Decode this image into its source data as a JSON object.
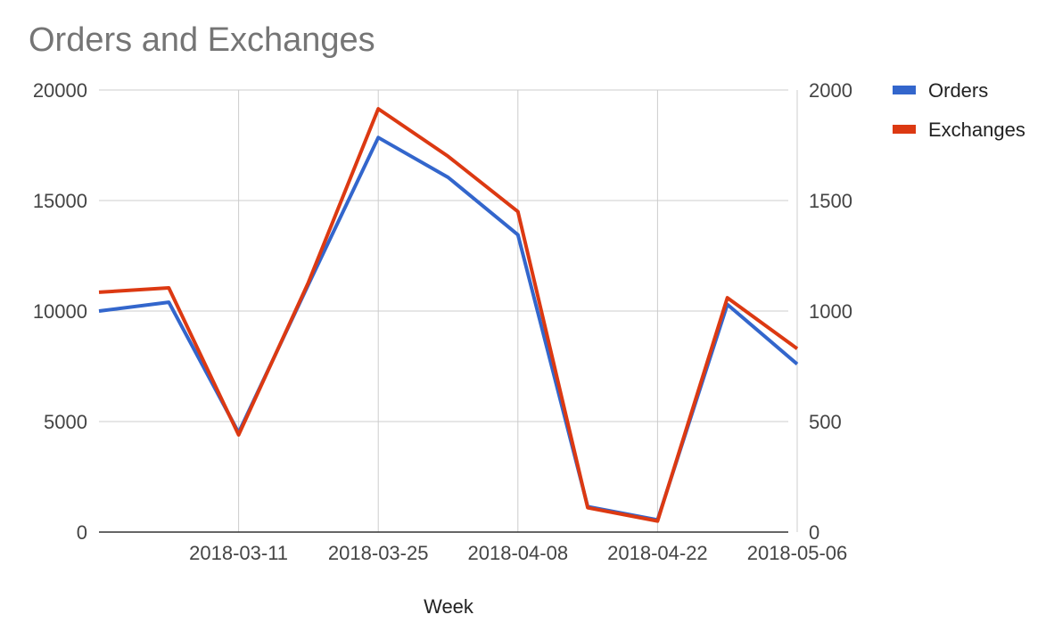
{
  "chart_data": {
    "type": "line",
    "title": "Orders and Exchanges",
    "xlabel": "Week",
    "ylabel": "",
    "y2label": "",
    "x": [
      "2018-02-25",
      "2018-03-04",
      "2018-03-11",
      "2018-03-18",
      "2018-03-25",
      "2018-04-01",
      "2018-04-08",
      "2018-04-15",
      "2018-04-22",
      "2018-04-29",
      "2018-05-06"
    ],
    "x_tick_labels": [
      "2018-03-11",
      "2018-03-25",
      "2018-04-08",
      "2018-04-22",
      "2018-05-06"
    ],
    "ylim": [
      0,
      20000
    ],
    "y_ticks": [
      0,
      5000,
      10000,
      15000,
      20000
    ],
    "y2lim": [
      0,
      2000
    ],
    "y2_ticks": [
      0,
      500,
      1000,
      1500,
      2000
    ],
    "grid": true,
    "legend_position": "top-right",
    "series": [
      {
        "name": "Orders",
        "axis": "left",
        "color": "#3366cc",
        "values": [
          10000,
          10400,
          4500,
          11200,
          17850,
          16050,
          13450,
          1150,
          550,
          10300,
          7600
        ]
      },
      {
        "name": "Exchanges",
        "axis": "right",
        "color": "#dc3912",
        "values": [
          1085,
          1105,
          440,
          1130,
          1915,
          1700,
          1450,
          110,
          50,
          1060,
          830
        ]
      }
    ]
  }
}
